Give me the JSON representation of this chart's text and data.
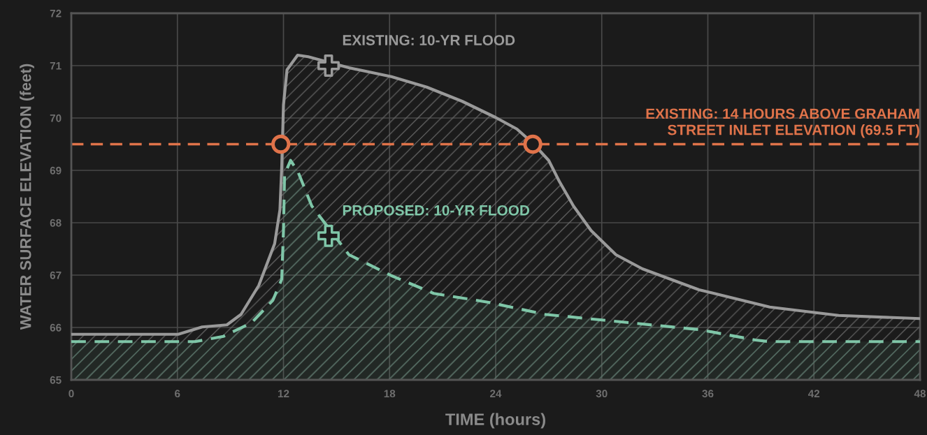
{
  "chart_data": {
    "type": "area",
    "xlabel": "TIME (hours)",
    "ylabel": "WATER SURFACE ELEVATION (feet)",
    "xlim": [
      0,
      48
    ],
    "ylim": [
      65,
      72
    ],
    "xticks": [
      0,
      6,
      12,
      18,
      24,
      30,
      36,
      42,
      48
    ],
    "yticks": [
      65,
      66,
      67,
      68,
      69,
      70,
      71,
      72
    ],
    "grid": true,
    "series": [
      {
        "color": "#9a9a9a",
        "line_style": "solid",
        "marker": "none",
        "x": [
          0,
          6.05,
          7.4,
          8.8,
          9.6,
          10.6,
          11.5,
          11.8,
          11.9,
          12.0,
          12.2,
          12.8,
          13.4,
          15.7,
          18.1,
          20.1,
          22.1,
          24.0,
          25.2,
          26.1,
          27.0,
          27.6,
          28.4,
          29.4,
          30.8,
          32.3,
          35.5,
          39.5,
          43.4,
          48
        ],
        "values": [
          65.87,
          65.87,
          66.01,
          66.05,
          66.25,
          66.8,
          67.6,
          68.25,
          69.05,
          70.25,
          70.92,
          71.2,
          71.17,
          70.96,
          70.79,
          70.59,
          70.32,
          70.01,
          69.79,
          69.52,
          69.19,
          68.79,
          68.32,
          67.85,
          67.39,
          67.12,
          66.72,
          66.39,
          66.23,
          66.17
        ]
      },
      {
        "color": "#7fc6a8",
        "line_style": "dashed",
        "marker": "none",
        "x": [
          0,
          7.0,
          8.6,
          10.2,
          11.4,
          11.9,
          12.0,
          12.06,
          12.4,
          12.8,
          13.6,
          15.7,
          18.1,
          20.5,
          23.6,
          26.8,
          31.6,
          35.5,
          38.7,
          39.5,
          48
        ],
        "values": [
          65.73,
          65.73,
          65.83,
          66.09,
          66.52,
          66.92,
          67.85,
          68.92,
          69.19,
          68.99,
          68.32,
          67.39,
          66.99,
          66.65,
          66.48,
          66.25,
          66.09,
          65.96,
          65.76,
          65.73,
          65.73
        ]
      },
      {
        "type": "scatter",
        "color": "#e0734a",
        "marker": "circle",
        "x": [
          11.85,
          26.1
        ],
        "values": [
          69.5,
          69.5
        ]
      }
    ],
    "ref_lines": [
      {
        "axis": "y",
        "value": 69.5,
        "label": "EXISTING: 14 HOURS ABOVE GRAHAM\nSTREET INLET ELEVATION (69.5 FT)",
        "color": "#e0734a",
        "line_style": "dashed"
      }
    ],
    "annotations": [
      {
        "text": "EXISTING: 10-YR FLOOD",
        "x": 14.55,
        "y": 71.0
      },
      {
        "text": "PROPOSED: 10-YR FLOOD",
        "x": 14.55,
        "y": 67.75
      }
    ]
  }
}
